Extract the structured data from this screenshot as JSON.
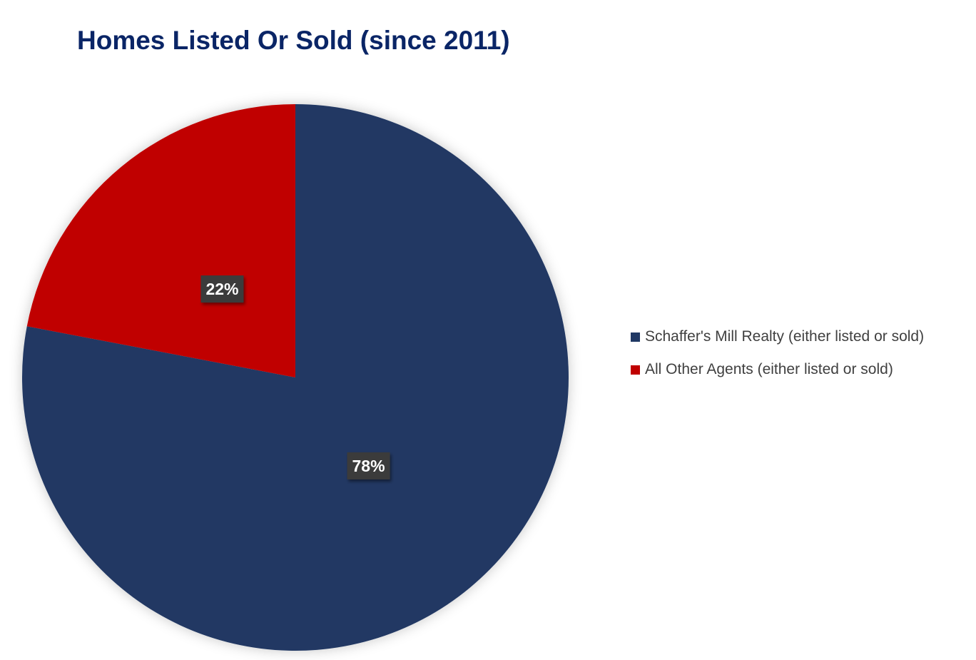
{
  "chart_data": {
    "type": "pie",
    "title": "Homes Listed Or Sold (since 2011)",
    "slices": [
      {
        "name": "Schaffer's Mill Realty (either listed or sold)",
        "value": 78,
        "label": "78%",
        "color": "#203864"
      },
      {
        "name": "All Other Agents (either listed or sold)",
        "value": 22,
        "label": "22%",
        "color": "#c00000"
      }
    ],
    "legend_position": "right"
  }
}
